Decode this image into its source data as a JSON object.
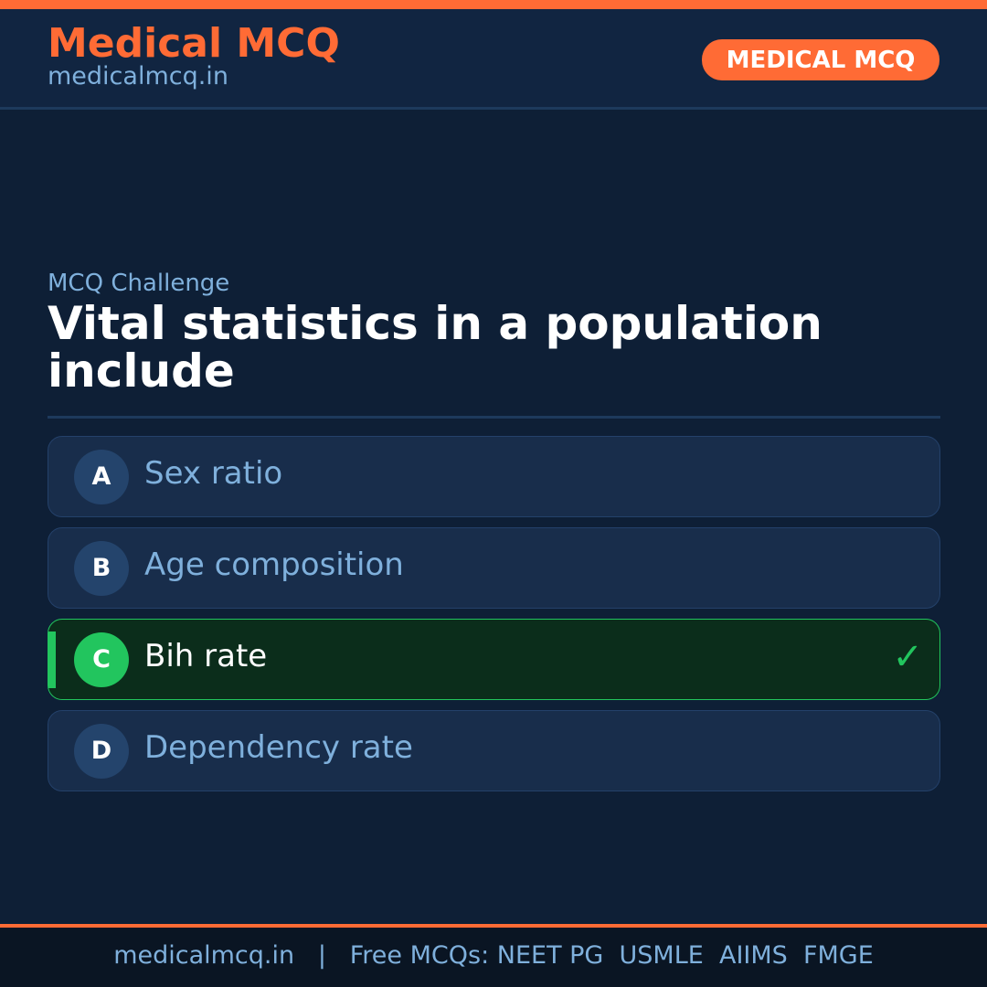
{
  "header": {
    "brand": "Medical MCQ",
    "site": "medicalmcq.in",
    "badge": "MEDICAL MCQ"
  },
  "question": {
    "kicker": "MCQ Challenge",
    "text": "Vital statistics in a population include"
  },
  "options": [
    {
      "letter": "A",
      "text": "Sex ratio"
    },
    {
      "letter": "B",
      "text": "Age composition"
    },
    {
      "letter": "C",
      "text": "Bih rate",
      "correct": true
    },
    {
      "letter": "D",
      "text": "Dependency rate"
    }
  ],
  "footer": {
    "site": "medicalmcq.in",
    "sep": "|",
    "text": "Free MCQs: NEET PG  USMLE  AIIMS  FMGE"
  },
  "colors": {
    "accent": "#ff6b35",
    "correct": "#22c55e",
    "background": "#0e1f36"
  }
}
